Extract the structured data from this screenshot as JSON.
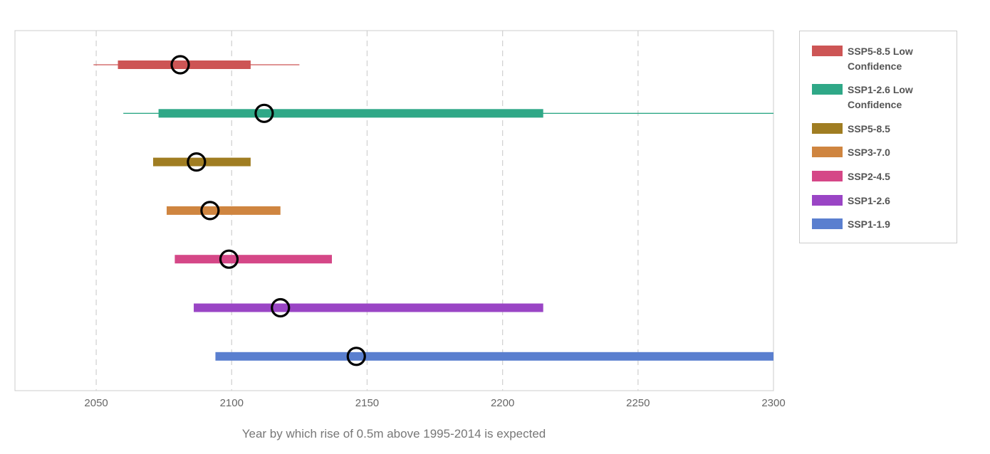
{
  "chart_data": {
    "type": "range",
    "title": "",
    "xlabel": "Year by which rise of 0.5m above 1995-2014 is expected",
    "ylabel": "",
    "xlim": [
      2020,
      2300
    ],
    "x_ticks": [
      "2050",
      "2100",
      "2150",
      "2200",
      "2250",
      "2300"
    ],
    "grid": "vertical dashed",
    "legend_position": "right",
    "series": [
      {
        "name": "SSP5-8.5 Low Confidence",
        "color": "#cd5555",
        "likely_range": [
          2058,
          2107
        ],
        "very_likely_range": [
          2049,
          2125
        ],
        "median": 2081
      },
      {
        "name": "SSP1-2.6 Low Confidence",
        "color": "#2fa887",
        "likely_range": [
          2073,
          2215
        ],
        "very_likely_range": [
          2060,
          2300
        ],
        "median": 2112
      },
      {
        "name": "SSP5-8.5",
        "color": "#a07d22",
        "likely_range": [
          2071,
          2107
        ],
        "median": 2087
      },
      {
        "name": "SSP3-7.0",
        "color": "#cf8540",
        "likely_range": [
          2076,
          2118
        ],
        "median": 2092
      },
      {
        "name": "SSP2-4.5",
        "color": "#d54787",
        "likely_range": [
          2079,
          2137
        ],
        "median": 2099
      },
      {
        "name": "SSP1-2.6",
        "color": "#9a45c5",
        "likely_range": [
          2086,
          2215
        ],
        "median": 2118
      },
      {
        "name": "SSP1-1.9",
        "color": "#5a7fcf",
        "likely_range": [
          2094,
          2300
        ],
        "median": 2146
      }
    ]
  }
}
